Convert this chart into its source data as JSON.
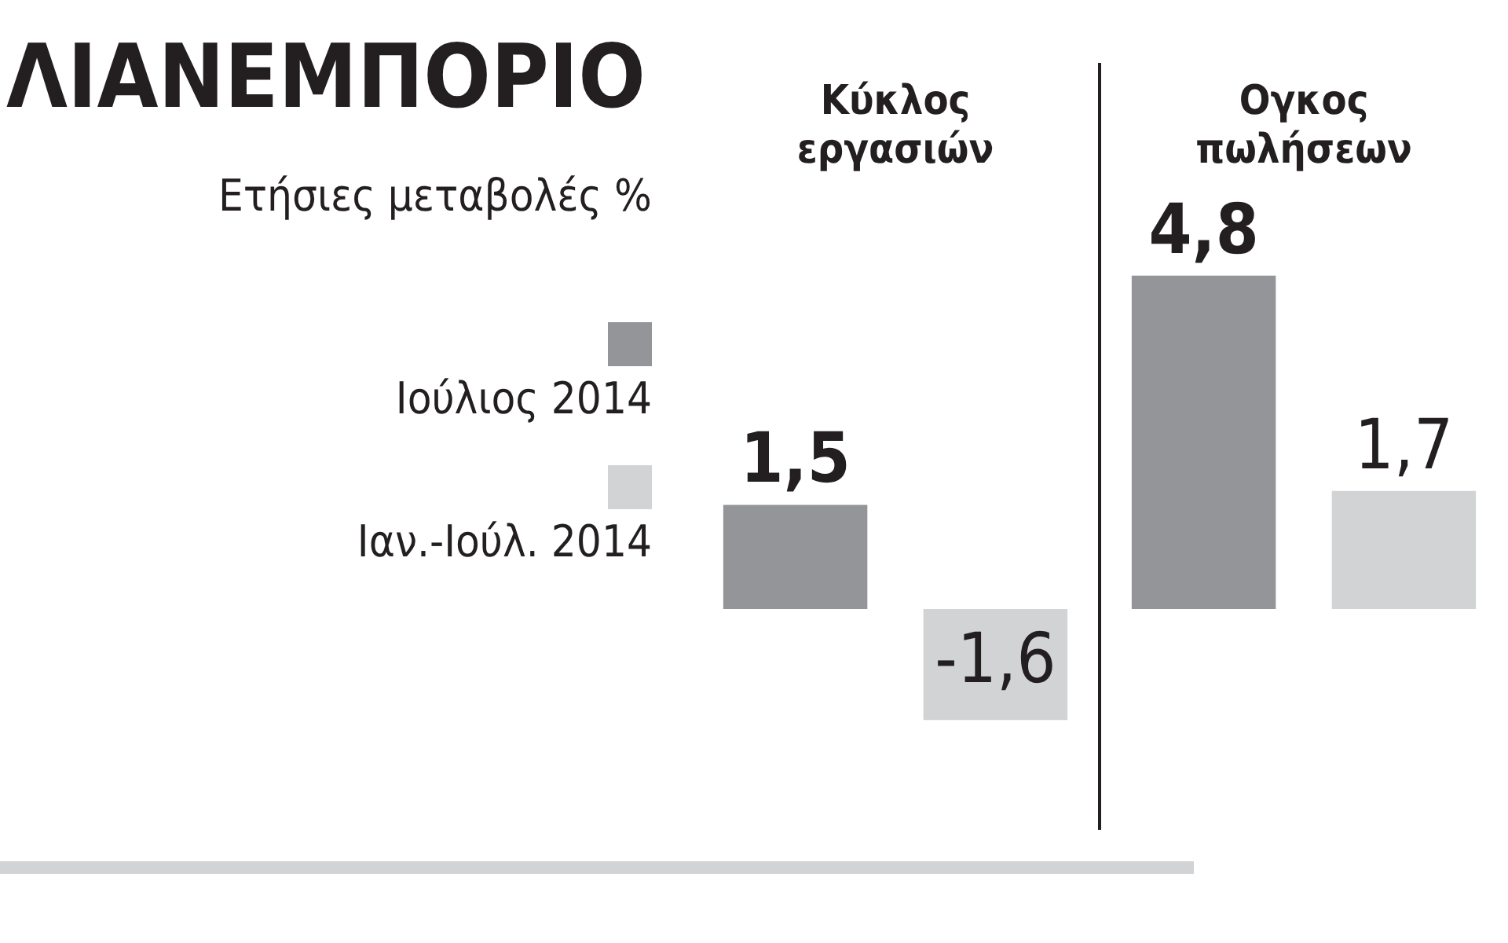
{
  "chart_data": {
    "type": "bar",
    "title": "ΛΙΑΝΕΜΠΟΡΙΟ",
    "subtitle": "Ετήσιες μεταβολές %",
    "categories": [
      "Κύκλος εργασιών",
      "Ογκος πωλήσεων"
    ],
    "series": [
      {
        "name": "Ιούλιος 2014",
        "color": "#939598",
        "values": [
          1.5,
          4.8
        ],
        "value_labels": [
          "1,5",
          "4,8"
        ]
      },
      {
        "name": "Ιαν.-Ιούλ. 2014",
        "color": "#d1d3d4",
        "values": [
          -1.6,
          1.7
        ],
        "value_labels": [
          "-1,6",
          "1,7"
        ]
      }
    ],
    "legend": "left",
    "grid": false
  }
}
